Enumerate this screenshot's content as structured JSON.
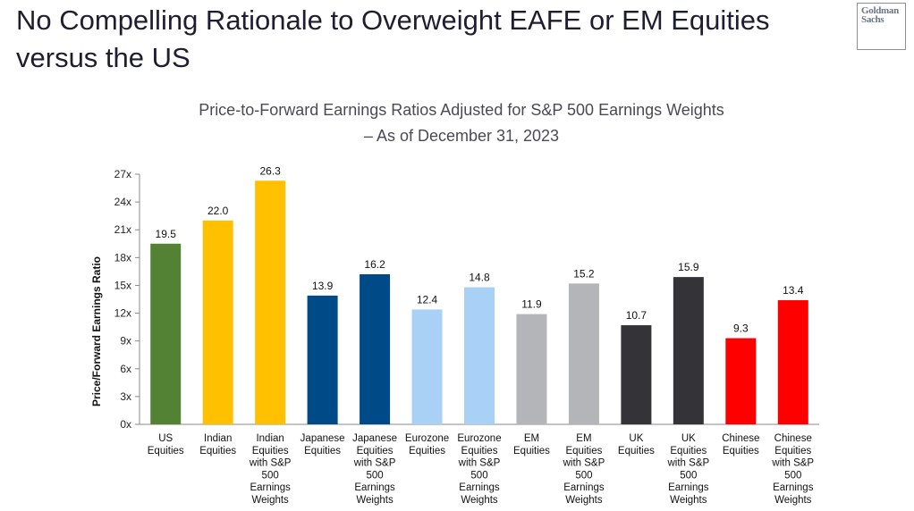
{
  "page": {
    "title": "No Compelling Rationale to Overweight EAFE or EM Equities versus the US",
    "logo_line1": "Goldman",
    "logo_line2": "Sachs"
  },
  "chart_data": {
    "type": "bar",
    "title_line1": "Price-to-Forward Earnings Ratios Adjusted for S&P 500 Earnings Weights",
    "title_line2": "– As of December 31, 2023",
    "ylabel": "Price/Forward Earnings Ratio",
    "ylim": [
      0,
      27
    ],
    "yticks": [
      "0x",
      "3x",
      "6x",
      "9x",
      "12x",
      "15x",
      "18x",
      "21x",
      "24x",
      "27x"
    ],
    "categories": [
      [
        "US",
        "Equities"
      ],
      [
        "Indian",
        "Equities"
      ],
      [
        "Indian",
        "Equities",
        "with S&P",
        "500",
        "Earnings",
        "Weights"
      ],
      [
        "Japanese",
        "Equities"
      ],
      [
        "Japanese",
        "Equities",
        "with S&P",
        "500",
        "Earnings",
        "Weights"
      ],
      [
        "Eurozone",
        "Equities"
      ],
      [
        "Eurozone",
        "Equities",
        "with S&P",
        "500",
        "Earnings",
        "Weights"
      ],
      [
        "EM",
        "Equities"
      ],
      [
        "EM",
        "Equities",
        "with S&P",
        "500",
        "Earnings",
        "Weights"
      ],
      [
        "UK",
        "Equities"
      ],
      [
        "UK",
        "Equities",
        "with S&P",
        "500",
        "Earnings",
        "Weights"
      ],
      [
        "Chinese",
        "Equities"
      ],
      [
        "Chinese",
        "Equities",
        "with S&P",
        "500",
        "Earnings",
        "Weights"
      ]
    ],
    "values": [
      19.5,
      22.0,
      26.3,
      13.9,
      16.2,
      12.4,
      14.8,
      11.9,
      15.2,
      10.7,
      15.9,
      9.3,
      13.4
    ],
    "value_labels": [
      "19.5",
      "22.0",
      "26.3",
      "13.9",
      "16.2",
      "12.4",
      "14.8",
      "11.9",
      "15.2",
      "10.7",
      "15.9",
      "9.3",
      "13.4"
    ],
    "colors": [
      "#548235",
      "#ffc000",
      "#ffc000",
      "#004a87",
      "#004a87",
      "#a9d1f5",
      "#a9d1f5",
      "#b4b5b8",
      "#b4b5b8",
      "#343438",
      "#343438",
      "#ff0000",
      "#ff0000"
    ],
    "grid": false
  }
}
